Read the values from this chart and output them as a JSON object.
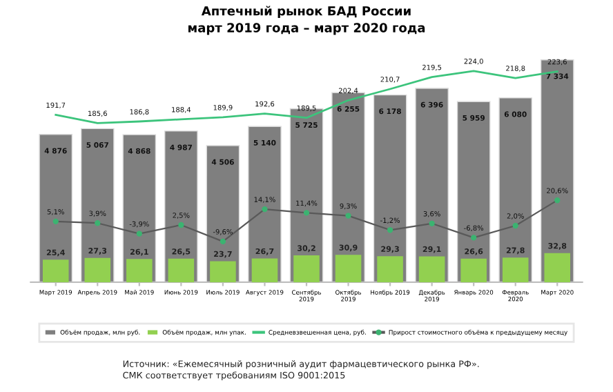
{
  "chart_data": [
    {
      "type": "bar",
      "title": "Аптечный рынок БАД России\nмарт 2019 года – март 2020 года",
      "categories": [
        "Март 2019",
        "Апрель 2019",
        "Май 2019",
        "Июнь 2019",
        "Июль 2019",
        "Август 2019",
        "Сентябрь\n2019",
        "Октябрь\n2019",
        "Ноябрь 2019",
        "Декабрь\n2019",
        "Январь 2020",
        "Февраль\n2020",
        "Март 2020"
      ],
      "series": [
        {
          "name": "Объём продаж, млн руб.",
          "axis": "y",
          "color": "#7f7f7f",
          "values": [
            4876,
            5067,
            4868,
            4987,
            4506,
            5140,
            5725,
            6255,
            6178,
            6396,
            5959,
            6080,
            7334
          ],
          "value_labels": [
            "4 876",
            "5 067",
            "4 868",
            "4 987",
            "4 506",
            "5 140",
            "5 725",
            "6 255",
            "6 178",
            "6 396",
            "5 959",
            "6 080",
            "7 334"
          ]
        },
        {
          "name": "Объём продаж, млн упак.",
          "axis": "y2",
          "color": "#92d050",
          "values": [
            25.4,
            27.3,
            26.1,
            26.5,
            23.7,
            26.7,
            30.2,
            30.9,
            29.3,
            29.1,
            26.6,
            27.8,
            32.8
          ],
          "value_labels": [
            "25,4",
            "27,3",
            "26,1",
            "26,5",
            "23,7",
            "26,7",
            "30,2",
            "30,9",
            "29,3",
            "29,1",
            "26,6",
            "27,8",
            "32,8"
          ]
        }
      ],
      "ylim": [
        0,
        7500
      ],
      "y2lim": [
        0,
        256
      ],
      "tick_labels": "x",
      "grid": false,
      "legend": "bottom",
      "annotations": [
        "Источник: «Ежемесячный розничный аудит фармацевтического рынка РФ».\nСМК соответствует требованиям ISO 9001:2015"
      ]
    },
    {
      "type": "line",
      "categories": [
        null,
        null,
        null,
        null,
        null,
        null,
        null,
        null,
        null,
        null,
        null,
        null,
        null
      ],
      "series": [
        {
          "name": "Средневзвешенная цена, руб.",
          "axis": "y",
          "color": "#3cc47c",
          "marker": "none",
          "values": [
            191.7,
            185.6,
            186.8,
            188.4,
            189.9,
            192.6,
            189.5,
            202.4,
            210.7,
            219.5,
            224.0,
            218.8,
            223.6
          ],
          "value_labels": [
            "191,7",
            "185,6",
            "186,8",
            "188,4",
            "189,9",
            "192,6",
            "189,5",
            "202,4",
            "210,7",
            "219,5",
            "224,0",
            "218,8",
            "223,6"
          ]
        }
      ],
      "tick_labels": false,
      "grid": false,
      "legend": "bottom"
    },
    {
      "type": "line",
      "categories": [
        null,
        null,
        null,
        null,
        null,
        null,
        null,
        null,
        null,
        null,
        null,
        null,
        null
      ],
      "series": [
        {
          "name": "Прирост стоимостного объёма к предыдущему месяцу",
          "axis": "y",
          "color": "#595959",
          "marker": "circle",
          "values": [
            5.1,
            3.9,
            -3.9,
            2.5,
            -9.6,
            14.1,
            11.4,
            9.3,
            -1.2,
            3.6,
            -6.8,
            2.0,
            20.6
          ],
          "value_labels": [
            "5,1%",
            "3,9%",
            "-3,9%",
            "2,5%",
            "-9,6%",
            "14,1%",
            "11,4%",
            "9,3%",
            "-1,2%",
            "3,6%",
            "-6,8%",
            "2,0%",
            "20,6%"
          ]
        }
      ],
      "tick_labels": false,
      "grid": false,
      "legend": "bottom"
    }
  ]
}
